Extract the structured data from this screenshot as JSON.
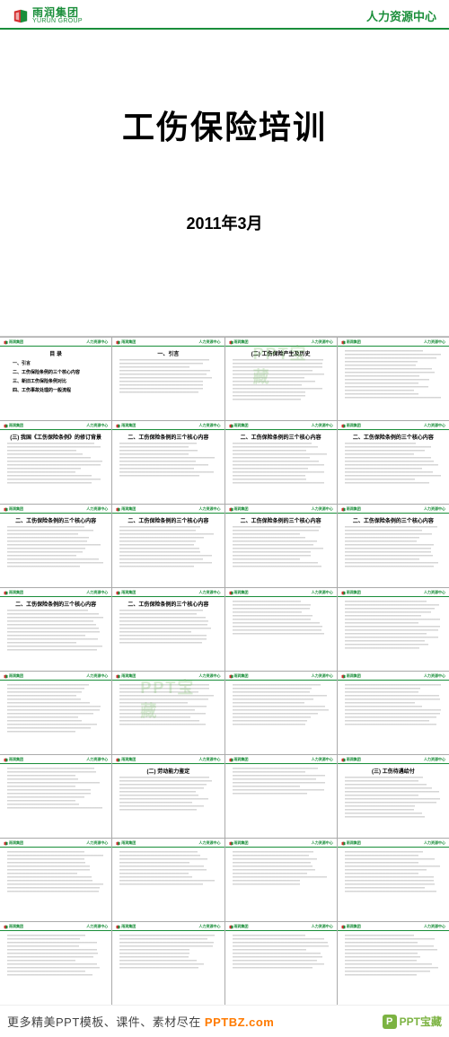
{
  "brand": {
    "cn": "雨润集团",
    "en": "YURUN GROUP",
    "hr": "人力资源中心",
    "logo_colors": {
      "red": "#d32f2f",
      "green": "#1a8e3a"
    }
  },
  "main": {
    "title": "工伤保险培训",
    "date": "2011年3月"
  },
  "watermark": "PPT宝藏",
  "thumbs": {
    "cols": 4,
    "rows": 8,
    "items": [
      {
        "type": "toc",
        "title": "目 录",
        "toc": [
          "一、引言",
          "二、工伤保险条例的三个核心内容",
          "三、新旧工伤保险条例对比",
          "四、工伤事故处理的一般流程"
        ]
      },
      {
        "title": "一、引言",
        "lines": 10
      },
      {
        "title": "(二) 工伤保险产生及历史",
        "lines": 12,
        "wm": true
      },
      {
        "title": "",
        "lines": 14
      },
      {
        "title": "(三) 我国《工伤保险条例》的修订背景",
        "lines": 12
      },
      {
        "title": "二、工伤保险条例的三个核心内容",
        "lines": 10
      },
      {
        "title": "二、工伤保险条例的三个核心内容",
        "lines": 12
      },
      {
        "title": "二、工伤保险条例的三个核心内容",
        "lines": 12
      },
      {
        "title": "二、工伤保险条例的三个核心内容",
        "lines": 12
      },
      {
        "title": "二、工伤保险条例的三个核心内容",
        "lines": 12
      },
      {
        "title": "二、工伤保险条例的三个核心内容",
        "lines": 12
      },
      {
        "title": "二、工伤保险条例的三个核心内容",
        "lines": 12
      },
      {
        "title": "二、工伤保险条例的三个核心内容",
        "lines": 12
      },
      {
        "title": "二、工伤保险条例的三个核心内容",
        "lines": 10
      },
      {
        "title": "",
        "lines": 10
      },
      {
        "title": "",
        "lines": 14
      },
      {
        "title": "",
        "lines": 14
      },
      {
        "title": "",
        "lines": 12,
        "wm": true
      },
      {
        "title": "",
        "lines": 12
      },
      {
        "title": "",
        "lines": 12
      },
      {
        "title": "",
        "lines": 12
      },
      {
        "title": "(二) 劳动能力鉴定",
        "lines": 10
      },
      {
        "title": "",
        "lines": 8
      },
      {
        "title": "(三) 工伤待遇给付",
        "lines": 12
      },
      {
        "title": "",
        "lines": 12
      },
      {
        "title": "",
        "lines": 10
      },
      {
        "title": "",
        "lines": 10
      },
      {
        "title": "",
        "lines": 12
      },
      {
        "title": "",
        "lines": 12
      },
      {
        "title": "",
        "lines": 10
      },
      {
        "title": "",
        "lines": 10
      },
      {
        "title": "",
        "lines": 12
      }
    ]
  },
  "footer": {
    "text_pre": "更多精美PPT模板、课件、素材尽在 ",
    "url": "PPTBZ.com",
    "brand_letter": "P",
    "brand_text": "PPT宝藏"
  },
  "colors": {
    "accent_green": "#1a8e3a",
    "footer_orange": "#ff7a00",
    "p_green": "#7cb342"
  }
}
